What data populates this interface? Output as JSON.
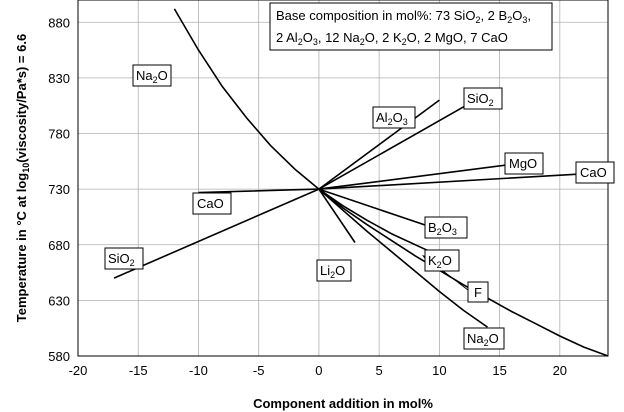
{
  "chart_data": {
    "type": "line",
    "title": "",
    "xlabel": "Component addition in mol%",
    "ylabel": "Temperature in °C at log₁₀(viscosity/Pa*s) = 6.6",
    "xlim": [
      -20,
      24
    ],
    "ylim": [
      580,
      900
    ],
    "xticks": [
      -20,
      -15,
      -10,
      -5,
      0,
      5,
      10,
      15,
      20
    ],
    "yticks": [
      580,
      630,
      680,
      730,
      780,
      830,
      880
    ],
    "grid": true,
    "annotation_lines": [
      "Base composition in mol%: 73 SiO₂, 2 B₂O₃,",
      "2 Al₂O₃, 12 Na₂O, 2 K₂O, 2 MgO, 7 CaO"
    ],
    "series": [
      {
        "name": "Na₂O",
        "x": [
          -12,
          -10,
          -8,
          -6,
          -4,
          -2,
          0,
          2,
          4,
          6,
          8,
          10,
          12,
          14,
          16,
          18,
          20,
          22,
          24
        ],
        "y": [
          892,
          855,
          822,
          794,
          769,
          748,
          730,
          713,
          698,
          684,
          670,
          657,
          644,
          632,
          620,
          609,
          598,
          588,
          580
        ]
      },
      {
        "name": "SiO₂",
        "x": [
          -17,
          0,
          13
        ],
        "y": [
          650,
          730,
          810
        ]
      },
      {
        "name": "Al₂O₃",
        "x": [
          0,
          10
        ],
        "y": [
          730,
          810
        ]
      },
      {
        "name": "CaO",
        "x": [
          -10,
          0,
          24
        ],
        "y": [
          727,
          730,
          745
        ]
      },
      {
        "name": "MgO",
        "x": [
          0,
          18
        ],
        "y": [
          730,
          755
        ]
      },
      {
        "name": "B₂O₃",
        "x": [
          0,
          9
        ],
        "y": [
          730,
          697
        ]
      },
      {
        "name": "K₂O",
        "x": [
          0,
          2,
          4,
          6,
          9
        ],
        "y": [
          730,
          715,
          702,
          690,
          675
        ]
      },
      {
        "name": "F",
        "x": [
          0,
          2,
          4,
          6,
          8,
          10,
          12,
          14
        ],
        "y": [
          730,
          711,
          692,
          674,
          656,
          638,
          621,
          606
        ]
      },
      {
        "name": "Li₂O",
        "x": [
          0,
          3
        ],
        "y": [
          730,
          682
        ]
      }
    ]
  },
  "labels": {
    "na2o_top": {
      "base": "Na",
      "sub": "2",
      "tail": "O"
    },
    "na2o_bottom": {
      "base": "Na",
      "sub": "2",
      "tail": "O"
    },
    "sio2_right": {
      "base": "SiO",
      "sub": "2",
      "tail": ""
    },
    "sio2_left": {
      "base": "SiO",
      "sub": "2",
      "tail": ""
    },
    "al2o3": {
      "base": "Al",
      "sub": "2",
      "tail": "O",
      "sub2": "3"
    },
    "mgo": {
      "text": "MgO"
    },
    "cao_right": {
      "text": "CaO"
    },
    "cao_left": {
      "text": "CaO"
    },
    "b2o3": {
      "base": "B",
      "sub": "2",
      "tail": "O",
      "sub2": "3"
    },
    "k2o": {
      "base": "K",
      "sub": "2",
      "tail": "O"
    },
    "li2o": {
      "base": "Li",
      "sub": "2",
      "tail": "O"
    },
    "f": {
      "text": "F"
    }
  },
  "yaxis_title_parts": {
    "pre": "Temperature in °C at log",
    "sub": "10",
    "post": "(viscosity/Pa*s) = 6.6"
  },
  "annotation_parts": {
    "l1a": "Base composition in mol%: 73 SiO",
    "l1b": "2",
    "l1c": ", 2 B",
    "l1d": "2",
    "l1e": "O",
    "l1f": "3",
    "l1g": ",",
    "l2a": "2 Al",
    "l2b": "2",
    "l2c": "O",
    "l2d": "3",
    "l2e": ", 12 Na",
    "l2f": "2",
    "l2g": "O, 2 K",
    "l2h": "2",
    "l2i": "O, 2 MgO, 7 CaO"
  }
}
